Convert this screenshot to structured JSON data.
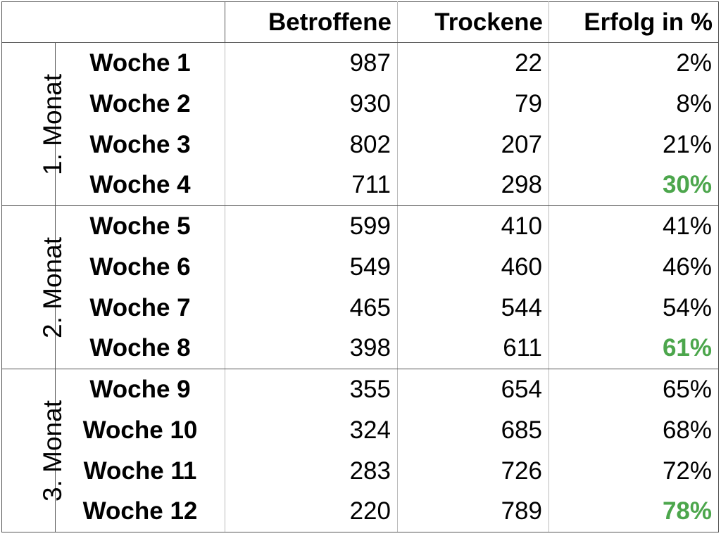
{
  "headers": {
    "corner": "",
    "affected": "Betroffene",
    "dry": "Trockene",
    "success": "Erfolg in %"
  },
  "months": [
    {
      "label": "1. Monat",
      "weeks": [
        {
          "week": "Woche 1",
          "affected": "987",
          "dry": "22",
          "success": "2%",
          "highlight": false
        },
        {
          "week": "Woche 2",
          "affected": "930",
          "dry": "79",
          "success": "8%",
          "highlight": false
        },
        {
          "week": "Woche 3",
          "affected": "802",
          "dry": "207",
          "success": "21%",
          "highlight": false
        },
        {
          "week": "Woche 4",
          "affected": "711",
          "dry": "298",
          "success": "30%",
          "highlight": true
        }
      ]
    },
    {
      "label": "2. Monat",
      "weeks": [
        {
          "week": "Woche 5",
          "affected": "599",
          "dry": "410",
          "success": "41%",
          "highlight": false
        },
        {
          "week": "Woche 6",
          "affected": "549",
          "dry": "460",
          "success": "46%",
          "highlight": false
        },
        {
          "week": "Woche 7",
          "affected": "465",
          "dry": "544",
          "success": "54%",
          "highlight": false
        },
        {
          "week": "Woche 8",
          "affected": "398",
          "dry": "611",
          "success": "61%",
          "highlight": true
        }
      ]
    },
    {
      "label": "3. Monat",
      "weeks": [
        {
          "week": "Woche 9",
          "affected": "355",
          "dry": "654",
          "success": "65%",
          "highlight": false
        },
        {
          "week": "Woche 10",
          "affected": "324",
          "dry": "685",
          "success": "68%",
          "highlight": false
        },
        {
          "week": "Woche 11",
          "affected": "283",
          "dry": "726",
          "success": "72%",
          "highlight": false
        },
        {
          "week": "Woche 12",
          "affected": "220",
          "dry": "789",
          "success": "78%",
          "highlight": true
        }
      ]
    }
  ],
  "colors": {
    "highlight": "#4ca64c"
  }
}
